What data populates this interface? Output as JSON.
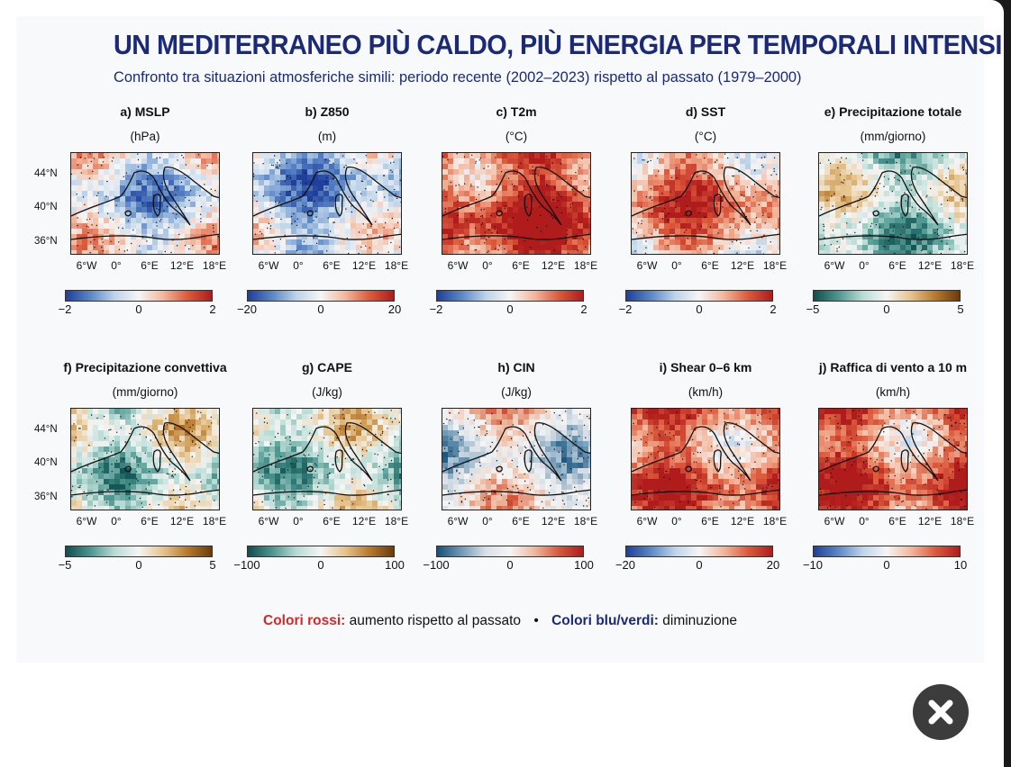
{
  "figure": {
    "title": "UN MEDITERRANEO PIÙ CALDO, PIÙ ENERGIA PER TEMPORALI INTENSI",
    "subtitle": "Confronto tra situazioni atmosferiche simili: periodo recente (2002–2023) rispetto al passato (1979–2000)"
  },
  "axes": {
    "lat_labels": [
      "44°N",
      "40°N",
      "36°N"
    ],
    "lon_labels": [
      "6°W",
      "0°",
      "6°E",
      "12°E",
      "18°E"
    ]
  },
  "colorscales": {
    "redblue": [
      "#1f3f9a",
      "#5a86c6",
      "#bcd3ea",
      "#f5f5f5",
      "#f3b79c",
      "#dd5a3c",
      "#b01c1c"
    ],
    "brbg": [
      "#0e4f4f",
      "#4c958f",
      "#b6dbd4",
      "#f5f5f5",
      "#e6c38b",
      "#b8792c",
      "#6b3b08"
    ],
    "cin": [
      "#15507a",
      "#6f9ab6",
      "#d8dfe6",
      "#f5f5f5",
      "#efb89d",
      "#d65a3e",
      "#b01c1c"
    ]
  },
  "panels": [
    {
      "title": "a) MSLP",
      "unit": "(hPa)",
      "scale": "redblue",
      "ticks": [
        "−2",
        "0",
        "2"
      ],
      "bias": -0.15,
      "seed": 3
    },
    {
      "title": "b) Z850",
      "unit": "(m)",
      "scale": "redblue",
      "ticks": [
        "−20",
        "0",
        "20"
      ],
      "bias": -0.3,
      "seed": 7
    },
    {
      "title": "c) T2m",
      "unit": "(°C)",
      "scale": "redblue",
      "ticks": [
        "−2",
        "0",
        "2"
      ],
      "bias": 0.75,
      "seed": 11
    },
    {
      "title": "d) SST",
      "unit": "(°C)",
      "scale": "redblue",
      "ticks": [
        "−2",
        "0",
        "2"
      ],
      "bias": 0.45,
      "seed": 17
    },
    {
      "title": "e) Precipitazione totale",
      "unit": "(mm/giorno)",
      "scale": "brbg",
      "ticks": [
        "−5",
        "0",
        "5"
      ],
      "bias": -0.2,
      "seed": 23
    },
    {
      "title": "f) Precipitazione convettiva",
      "unit": "(mm/giorno)",
      "scale": "brbg",
      "ticks": [
        "−5",
        "0",
        "5"
      ],
      "bias": -0.15,
      "seed": 29
    },
    {
      "title": "g) CAPE",
      "unit": "(J/kg)",
      "scale": "brbg",
      "ticks": [
        "−100",
        "0",
        "100"
      ],
      "bias": -0.15,
      "seed": 31
    },
    {
      "title": "h) CIN",
      "unit": "(J/kg)",
      "scale": "cin",
      "ticks": [
        "−100",
        "0",
        "100"
      ],
      "bias": -0.1,
      "seed": 37
    },
    {
      "title": "i) Shear 0–6 km",
      "unit": "(km/h)",
      "scale": "redblue",
      "ticks": [
        "−20",
        "0",
        "20"
      ],
      "bias": 0.55,
      "seed": 41
    },
    {
      "title": "j) Raffica di vento a 10 m",
      "unit": "(km/h)",
      "scale": "redblue",
      "ticks": [
        "−10",
        "0",
        "10"
      ],
      "bias": 0.6,
      "seed": 43
    }
  ],
  "legend": {
    "red_label": "Colori rossi:",
    "red_text": "aumento rispetto al passato",
    "separator": "•",
    "blue_label": "Colori blu/verdi:",
    "blue_text": "diminuzione"
  },
  "close_icon": "close-x-icon"
}
